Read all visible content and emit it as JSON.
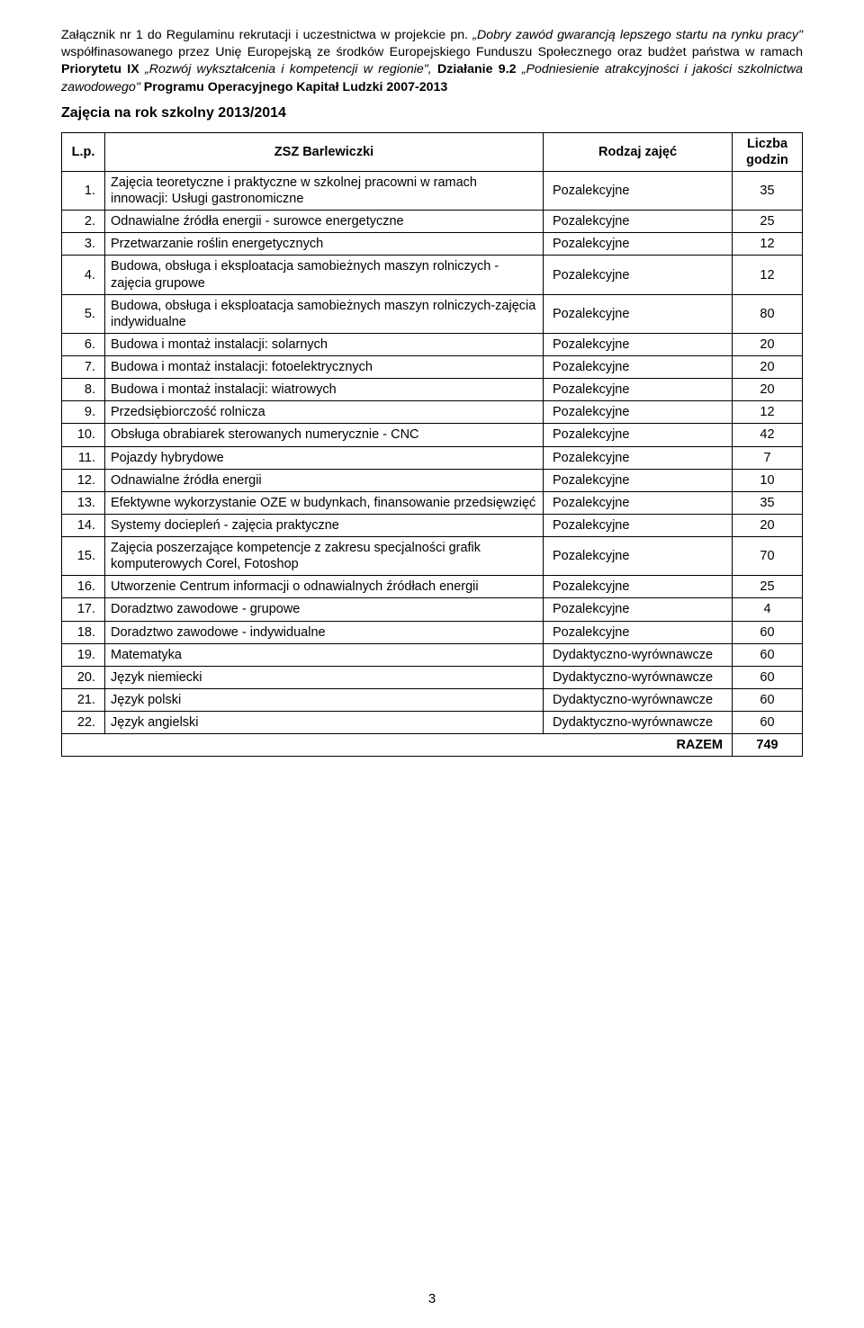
{
  "header": {
    "line1_a": "Załącznik nr 1 do Regulaminu rekrutacji i uczestnictwa w projekcie pn. ",
    "line1_b": "„Dobry zawód gwarancją lepszego startu na rynku pracy\"",
    "line1_c": " współfinasowanego przez Unię Europejską ze środków Europejskiego Funduszu Społecznego oraz budżet państwa w ramach ",
    "line1_d": "Priorytetu IX ",
    "line1_e": "„Rozwój wykształcenia i kompetencji w regionie\", ",
    "line1_f": "Działanie 9.2 ",
    "line1_g": "„Podniesienie atrakcyjności i jakości szkolnictwa zawodowego\" ",
    "line1_h": "Programu Operacyjnego Kapitał Ludzki 2007-2013"
  },
  "section_title": "Zajęcia na rok szkolny 2013/2014",
  "table": {
    "columns": [
      "L.p.",
      "ZSZ Barlewiczki",
      "Rodzaj zajęć",
      "Liczba godzin"
    ],
    "rows": [
      {
        "n": "1.",
        "desc": "Zajęcia teoretyczne i praktyczne w szkolnej pracowni w ramach innowacji: Usługi gastronomiczne",
        "type": "Pozalekcyjne",
        "h": "35"
      },
      {
        "n": "2.",
        "desc": "Odnawialne źródła energii - surowce energetyczne",
        "type": "Pozalekcyjne",
        "h": "25"
      },
      {
        "n": "3.",
        "desc": "Przetwarzanie roślin energetycznych",
        "type": "Pozalekcyjne",
        "h": "12"
      },
      {
        "n": "4.",
        "desc": "Budowa, obsługa i eksploatacja samobieżnych maszyn rolniczych - zajęcia grupowe",
        "type": "Pozalekcyjne",
        "h": "12"
      },
      {
        "n": "5.",
        "desc": "Budowa, obsługa i eksploatacja samobieżnych maszyn rolniczych-zajęcia indywidualne",
        "type": "Pozalekcyjne",
        "h": "80"
      },
      {
        "n": "6.",
        "desc": "Budowa i montaż instalacji: solarnych",
        "type": "Pozalekcyjne",
        "h": "20"
      },
      {
        "n": "7.",
        "desc": "Budowa i montaż instalacji: fotoelektrycznych",
        "type": "Pozalekcyjne",
        "h": "20"
      },
      {
        "n": "8.",
        "desc": "Budowa i montaż instalacji: wiatrowych",
        "type": "Pozalekcyjne",
        "h": "20"
      },
      {
        "n": "9.",
        "desc": "Przedsiębiorczość rolnicza",
        "type": "Pozalekcyjne",
        "h": "12"
      },
      {
        "n": "10.",
        "desc": "Obsługa obrabiarek sterowanych numerycznie - CNC",
        "type": "Pozalekcyjne",
        "h": "42"
      },
      {
        "n": "11.",
        "desc": "Pojazdy hybrydowe",
        "type": "Pozalekcyjne",
        "h": "7"
      },
      {
        "n": "12.",
        "desc": "Odnawialne źródła energii",
        "type": "Pozalekcyjne",
        "h": "10"
      },
      {
        "n": "13.",
        "desc": "Efektywne wykorzystanie OZE w budynkach, finansowanie przedsięwzięć",
        "type": "Pozalekcyjne",
        "h": "35"
      },
      {
        "n": "14.",
        "desc": "Systemy dociepleń - zajęcia praktyczne",
        "type": "Pozalekcyjne",
        "h": "20"
      },
      {
        "n": "15.",
        "desc": "Zajęcia poszerzające kompetencje z zakresu specjalności grafik komputerowych Corel, Fotoshop",
        "type": "Pozalekcyjne",
        "h": "70"
      },
      {
        "n": "16.",
        "desc": "Utworzenie Centrum informacji o odnawialnych źródłach energii",
        "type": "Pozalekcyjne",
        "h": "25"
      },
      {
        "n": "17.",
        "desc": "Doradztwo zawodowe - grupowe",
        "type": "Pozalekcyjne",
        "h": "4"
      },
      {
        "n": "18.",
        "desc": "Doradztwo zawodowe - indywidualne",
        "type": "Pozalekcyjne",
        "h": "60"
      },
      {
        "n": "19.",
        "desc": "Matematyka",
        "type": "Dydaktyczno-wyrównawcze",
        "h": "60"
      },
      {
        "n": "20.",
        "desc": "Język niemiecki",
        "type": "Dydaktyczno-wyrównawcze",
        "h": "60"
      },
      {
        "n": "21.",
        "desc": "Język polski",
        "type": "Dydaktyczno-wyrównawcze",
        "h": "60"
      },
      {
        "n": "22.",
        "desc": "Język angielski",
        "type": "Dydaktyczno-wyrównawcze",
        "h": "60"
      }
    ],
    "total_label": "RAZEM",
    "total_value": "749"
  },
  "page_number": "3"
}
